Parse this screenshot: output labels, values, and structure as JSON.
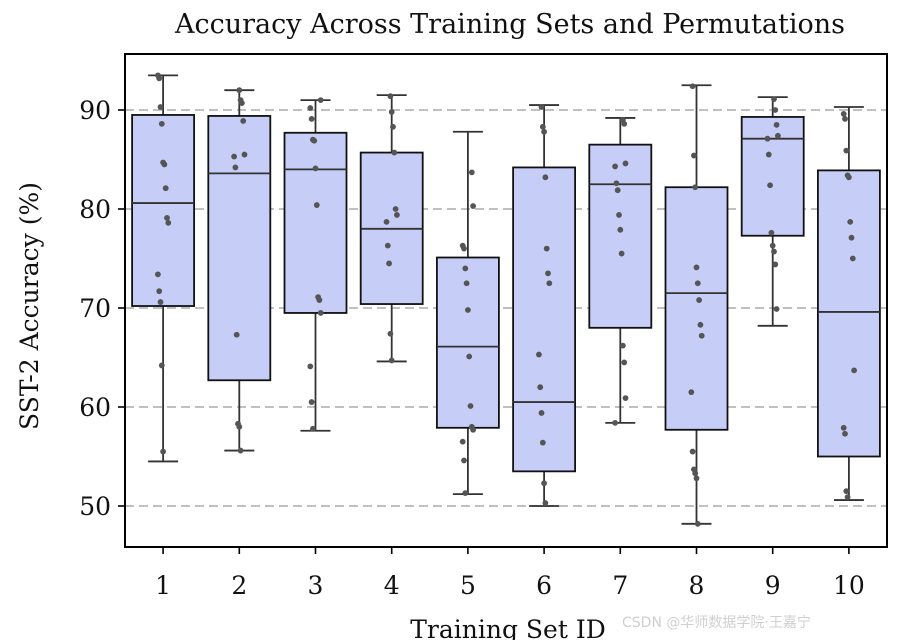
{
  "chart_data": {
    "type": "box",
    "title": "Accuracy Across Training Sets and Permutations",
    "xlabel": "Training Set ID",
    "ylabel": "SST-2 Accuracy (%)",
    "ylim": [
      46,
      96
    ],
    "yticks": [
      50,
      60,
      70,
      80,
      90
    ],
    "grid": "horizontal dashed at y ticks",
    "box_color": "#c6cdf7",
    "edge_color": "#333333",
    "point_color": "#555555",
    "grid_color": "#c0c0c0",
    "categories": [
      "1",
      "2",
      "3",
      "4",
      "5",
      "6",
      "7",
      "8",
      "9",
      "10"
    ],
    "boxes": [
      {
        "id": "1",
        "whislo": 54.5,
        "q1": 70.2,
        "med": 80.6,
        "q3": 89.5,
        "whishi": 93.5,
        "points": [
          93.5,
          93.2,
          90.3,
          88.6,
          84.7,
          84.5,
          82.1,
          79.1,
          78.6,
          73.4,
          71.7,
          70.6,
          64.2,
          55.5
        ]
      },
      {
        "id": "2",
        "whislo": 55.6,
        "q1": 62.7,
        "med": 83.6,
        "q3": 89.4,
        "whishi": 92.0,
        "points": [
          92.0,
          91.0,
          90.7,
          88.9,
          85.5,
          85.3,
          84.2,
          67.3,
          58.3,
          58.0,
          55.6
        ]
      },
      {
        "id": "3",
        "whislo": 57.6,
        "q1": 69.5,
        "med": 84.0,
        "q3": 87.7,
        "whishi": 91.0,
        "points": [
          91.0,
          90.2,
          89.1,
          87.0,
          86.9,
          84.1,
          80.4,
          71.1,
          70.8,
          69.5,
          64.1,
          60.5,
          57.8
        ]
      },
      {
        "id": "4",
        "whislo": 64.6,
        "q1": 70.4,
        "med": 78.0,
        "q3": 85.7,
        "whishi": 91.5,
        "points": [
          91.4,
          89.8,
          88.3,
          85.7,
          80.0,
          79.4,
          78.7,
          76.3,
          74.5,
          67.4,
          64.7
        ]
      },
      {
        "id": "5",
        "whislo": 51.2,
        "q1": 57.9,
        "med": 66.1,
        "q3": 75.1,
        "whishi": 87.8,
        "points": [
          83.7,
          80.3,
          76.3,
          76.0,
          74.0,
          72.5,
          69.8,
          65.1,
          60.1,
          58.0,
          57.7,
          56.5,
          54.6,
          51.3
        ]
      },
      {
        "id": "6",
        "whislo": 50.0,
        "q1": 53.5,
        "med": 60.5,
        "q3": 84.2,
        "whishi": 90.5,
        "points": [
          90.3,
          88.3,
          87.8,
          83.2,
          76.0,
          73.5,
          72.5,
          65.3,
          62.0,
          59.4,
          56.4,
          52.3,
          50.3
        ]
      },
      {
        "id": "7",
        "whislo": 58.4,
        "q1": 68.0,
        "med": 82.5,
        "q3": 86.5,
        "whishi": 89.2,
        "points": [
          89.0,
          88.6,
          84.6,
          84.3,
          82.6,
          81.9,
          79.4,
          77.9,
          75.5,
          66.2,
          64.5,
          60.9,
          58.4
        ]
      },
      {
        "id": "8",
        "whislo": 48.2,
        "q1": 57.7,
        "med": 71.5,
        "q3": 82.2,
        "whishi": 92.5,
        "points": [
          92.4,
          85.4,
          82.2,
          74.1,
          72.5,
          70.8,
          68.3,
          67.2,
          61.5,
          55.5,
          53.7,
          53.3,
          52.8,
          48.2
        ]
      },
      {
        "id": "9",
        "whislo": 68.2,
        "q1": 77.3,
        "med": 87.1,
        "q3": 89.3,
        "whishi": 91.3,
        "points": [
          91.1,
          90.0,
          88.5,
          87.4,
          87.1,
          85.5,
          82.4,
          77.6,
          76.3,
          75.7,
          74.4,
          69.9
        ]
      },
      {
        "id": "10",
        "whislo": 50.6,
        "q1": 55.0,
        "med": 69.6,
        "q3": 83.9,
        "whishi": 90.3,
        "points": [
          89.6,
          89.1,
          85.9,
          83.4,
          83.2,
          78.7,
          77.1,
          75.0,
          63.7,
          57.9,
          57.3,
          51.5,
          50.9
        ]
      }
    ]
  },
  "watermark": "CSDN @华师数据学院·王嘉宁"
}
